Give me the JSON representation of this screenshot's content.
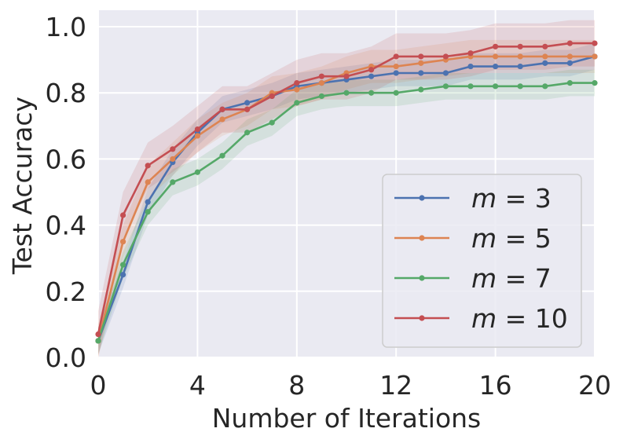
{
  "chart_data": {
    "type": "line",
    "title": "",
    "xlabel": "Number of Iterations",
    "ylabel": "Test Accuracy",
    "xlim": [
      0,
      20
    ],
    "ylim": [
      0,
      1.05
    ],
    "xticks": [
      0,
      4,
      8,
      12,
      16,
      20
    ],
    "yticks": [
      0.0,
      0.2,
      0.4,
      0.6,
      0.8,
      1.0
    ],
    "xtick_labels": [
      "0",
      "4",
      "8",
      "12",
      "16",
      "20"
    ],
    "ytick_labels": [
      "0.0",
      "0.2",
      "0.4",
      "0.6",
      "0.8",
      "1.0"
    ],
    "grid": true,
    "legend_position": "lower-right",
    "x": [
      0,
      1,
      2,
      3,
      4,
      5,
      6,
      7,
      8,
      9,
      10,
      11,
      12,
      13,
      14,
      15,
      16,
      17,
      18,
      19,
      20
    ],
    "series": [
      {
        "name": "m = 3",
        "var": "m",
        "value_label": "3",
        "color": "#4c72b0",
        "values": [
          0.05,
          0.25,
          0.47,
          0.59,
          0.68,
          0.75,
          0.77,
          0.79,
          0.82,
          0.83,
          0.84,
          0.85,
          0.86,
          0.86,
          0.86,
          0.88,
          0.88,
          0.88,
          0.89,
          0.89,
          0.91
        ],
        "band": 0.04
      },
      {
        "name": "m = 5",
        "var": "m",
        "value_label": "5",
        "color": "#dd8452",
        "values": [
          0.05,
          0.35,
          0.53,
          0.6,
          0.67,
          0.72,
          0.75,
          0.8,
          0.81,
          0.83,
          0.86,
          0.88,
          0.88,
          0.89,
          0.9,
          0.91,
          0.91,
          0.91,
          0.91,
          0.91,
          0.91
        ],
        "band": 0.05
      },
      {
        "name": "m = 7",
        "var": "m",
        "value_label": "7",
        "color": "#55a868",
        "values": [
          0.05,
          0.28,
          0.44,
          0.53,
          0.56,
          0.61,
          0.68,
          0.71,
          0.77,
          0.79,
          0.8,
          0.8,
          0.8,
          0.81,
          0.82,
          0.82,
          0.82,
          0.82,
          0.82,
          0.83,
          0.83
        ],
        "band": 0.04
      },
      {
        "name": "m = 10",
        "var": "m",
        "value_label": "10",
        "color": "#c44e52",
        "values": [
          0.07,
          0.43,
          0.58,
          0.63,
          0.69,
          0.75,
          0.75,
          0.79,
          0.83,
          0.85,
          0.85,
          0.87,
          0.91,
          0.91,
          0.91,
          0.92,
          0.94,
          0.94,
          0.94,
          0.95,
          0.95
        ],
        "band": 0.07
      }
    ]
  }
}
